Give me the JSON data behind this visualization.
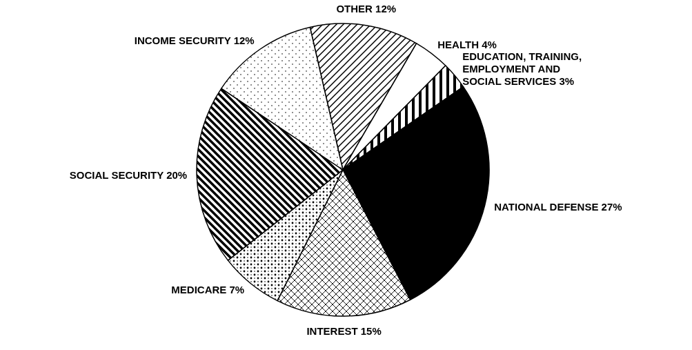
{
  "chart_data": {
    "type": "pie",
    "categories": [
      "OTHER 12%",
      "HEALTH 4%",
      "EDUCATION, TRAINING, EMPLOYMENT AND SOCIAL SERVICES 3%",
      "NATIONAL DEFENSE 27%",
      "INTEREST 15%",
      "MEDICARE 7%",
      "SOCIAL SECURITY 20%",
      "INCOME SECURITY 12%"
    ],
    "values": [
      12,
      4,
      3,
      27,
      15,
      7,
      20,
      12
    ],
    "colors": [
      "#ffffff",
      "#ffffff",
      "#ffffff",
      "#000000",
      "#ffffff",
      "#ffffff",
      "#ffffff",
      "#ffffff"
    ]
  }
}
